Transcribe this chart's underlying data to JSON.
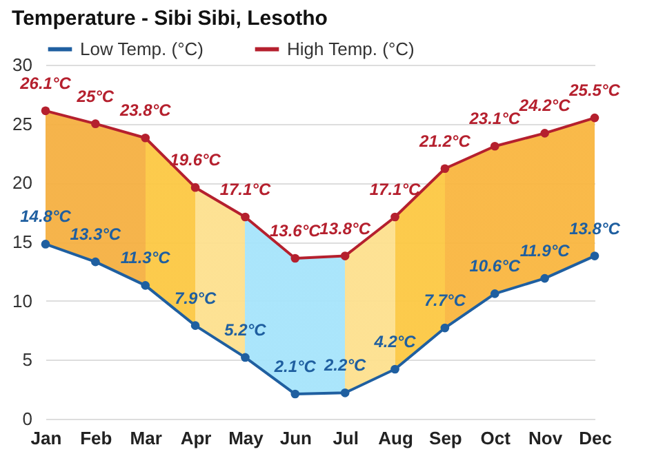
{
  "chart_data": {
    "type": "line",
    "title": "Temperature - Sibi Sibi, Lesotho",
    "categories": [
      "Jan",
      "Feb",
      "Mar",
      "Apr",
      "May",
      "Jun",
      "Jul",
      "Aug",
      "Sep",
      "Oct",
      "Nov",
      "Dec"
    ],
    "series": [
      {
        "name": "Low Temp. (°C)",
        "color": "#1f5fa0",
        "values": [
          14.8,
          13.3,
          11.3,
          7.9,
          5.2,
          2.1,
          2.2,
          4.2,
          7.7,
          10.6,
          11.9,
          13.8
        ],
        "value_labels": [
          "14.8°C",
          "13.3°C",
          "11.3°C",
          "7.9°C",
          "5.2°C",
          "2.1°C",
          "2.2°C",
          "4.2°C",
          "7.7°C",
          "10.6°C",
          "11.9°C",
          "13.8°C"
        ]
      },
      {
        "name": "High Temp. (°C)",
        "color": "#b5202e",
        "values": [
          26.1,
          25,
          23.8,
          19.6,
          17.1,
          13.6,
          13.8,
          17.1,
          21.2,
          23.1,
          24.2,
          25.5
        ],
        "value_labels": [
          "26.1°C",
          "25°C",
          "23.8°C",
          "19.6°C",
          "17.1°C",
          "13.6°C",
          "13.8°C",
          "17.1°C",
          "21.2°C",
          "23.1°C",
          "24.2°C",
          "25.5°C"
        ],
        "colors": [
          "#f5b042",
          "#f5b042",
          "#fcc843",
          "#fde08e",
          "#a6e4fb",
          "#a6e4fb",
          "#fde08e",
          "#fcc843",
          "#f9b640",
          "#f9b640",
          "#f9b640",
          "#f9b640"
        ]
      }
    ],
    "ylim": [
      0,
      30
    ],
    "yticks": [
      0,
      5,
      10,
      15,
      20,
      25,
      30
    ],
    "grid": "y",
    "legend": "top left",
    "marker": "circle",
    "line_style": "solid"
  }
}
